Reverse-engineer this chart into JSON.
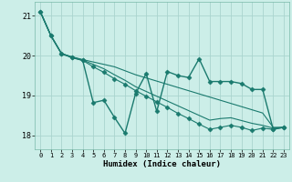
{
  "xlabel": "Humidex (Indice chaleur)",
  "background_color": "#cceee8",
  "grid_color": "#aad4ce",
  "line_color": "#1a7a6e",
  "xlim": [
    -0.5,
    23.5
  ],
  "ylim": [
    17.65,
    21.35
  ],
  "yticks": [
    18,
    19,
    20,
    21
  ],
  "xticks": [
    0,
    1,
    2,
    3,
    4,
    5,
    6,
    7,
    8,
    9,
    10,
    11,
    12,
    13,
    14,
    15,
    16,
    17,
    18,
    19,
    20,
    21,
    22,
    23
  ],
  "series": [
    {
      "y": [
        21.1,
        20.5,
        20.05,
        19.95,
        19.88,
        18.82,
        18.88,
        18.45,
        18.05,
        19.05,
        19.55,
        18.6,
        19.6,
        19.5,
        19.45,
        19.92,
        19.35,
        19.35,
        19.35,
        19.3,
        19.15,
        19.15,
        18.15,
        18.2
      ],
      "linestyle": "-",
      "linewidth": 1.0,
      "marker": "D",
      "markersize": 2.5
    },
    {
      "y": [
        21.1,
        20.5,
        20.05,
        19.95,
        19.88,
        19.72,
        19.58,
        19.42,
        19.28,
        19.12,
        18.98,
        18.84,
        18.7,
        18.55,
        18.42,
        18.28,
        18.15,
        18.2,
        18.25,
        18.2,
        18.12,
        18.18,
        18.15,
        18.2
      ],
      "linestyle": "-",
      "linewidth": 0.8,
      "marker": "D",
      "markersize": 2.5
    },
    {
      "y": [
        21.1,
        20.5,
        20.05,
        19.97,
        19.9,
        19.84,
        19.78,
        19.72,
        19.62,
        19.52,
        19.44,
        19.36,
        19.28,
        19.2,
        19.12,
        19.04,
        18.96,
        18.88,
        18.8,
        18.72,
        18.64,
        18.56,
        18.2,
        18.2
      ],
      "linestyle": "-",
      "linewidth": 0.8,
      "marker": null,
      "markersize": 0
    },
    {
      "y": [
        21.1,
        20.5,
        20.05,
        19.96,
        19.89,
        19.78,
        19.67,
        19.52,
        19.38,
        19.22,
        19.1,
        18.98,
        18.86,
        18.74,
        18.62,
        18.5,
        18.38,
        18.42,
        18.44,
        18.37,
        18.3,
        18.25,
        18.18,
        18.2
      ],
      "linestyle": "-",
      "linewidth": 0.8,
      "marker": null,
      "markersize": 0
    }
  ]
}
